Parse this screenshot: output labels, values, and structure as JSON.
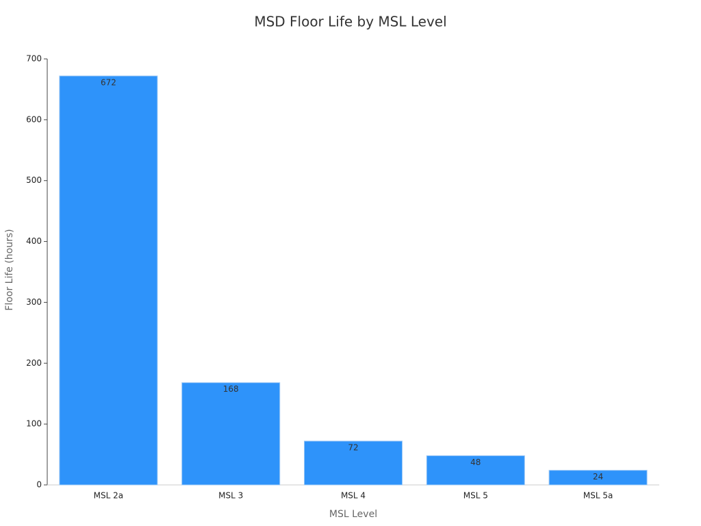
{
  "chart_data": {
    "type": "bar",
    "title": "MSD Floor Life by MSL Level",
    "x_label": "MSL Level",
    "y_label": "Floor Life (hours)",
    "categories": [
      "MSL 2a",
      "MSL 3",
      "MSL 4",
      "MSL 5",
      "MSL 5a"
    ],
    "values": [
      672,
      168,
      72,
      48,
      24
    ],
    "color": "#2e93fa",
    "ylim": [
      0,
      700
    ],
    "yticks": [
      0,
      100,
      200,
      300,
      400,
      500,
      600,
      700
    ],
    "grid": false,
    "data_labels": true
  }
}
